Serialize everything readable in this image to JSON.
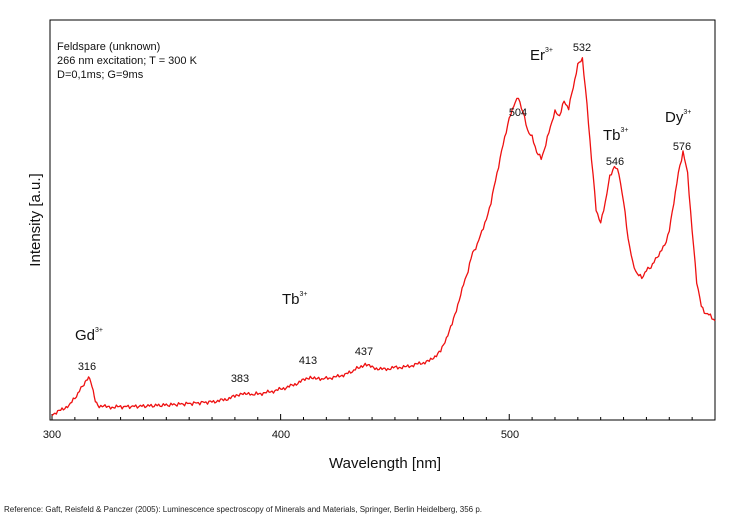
{
  "chart_data": {
    "type": "line",
    "xlabel": "Wavelength [nm]",
    "ylabel": "Intensity [a.u.]",
    "xlim": [
      300,
      590
    ],
    "ylim": [
      0,
      100
    ],
    "x_ticks": [
      "300",
      "400",
      "500"
    ],
    "info_lines": [
      "Feldspare (unknown)",
      "266 nm excitation; T = 300 K",
      "D=0,1ms; G=9ms"
    ],
    "series": [
      {
        "color": "#ee1111",
        "x": [
          300,
          305,
          308,
          310,
          312,
          314,
          315,
          316,
          317,
          318,
          319,
          320,
          322,
          325,
          330,
          340,
          350,
          360,
          370,
          375,
          380,
          383,
          386,
          390,
          395,
          400,
          405,
          410,
          413,
          416,
          420,
          425,
          430,
          434,
          437,
          440,
          445,
          450,
          455,
          460,
          465,
          470,
          475,
          480,
          482,
          484,
          486,
          488,
          490,
          492,
          494,
          496,
          498,
          500,
          502,
          504,
          506,
          508,
          510,
          512,
          514,
          516,
          518,
          520,
          522,
          524,
          526,
          528,
          530,
          532,
          534,
          536,
          538,
          540,
          542,
          544,
          546,
          548,
          550,
          552,
          554,
          556,
          558,
          560,
          562,
          564,
          566,
          568,
          570,
          572,
          574,
          576,
          578,
          580,
          582,
          584,
          586,
          588,
          590
        ],
        "y": [
          1,
          2.5,
          4,
          5.5,
          7.5,
          9.5,
          10.5,
          11,
          10,
          7.5,
          5,
          3.5,
          3.2,
          3,
          3.1,
          3.3,
          3.6,
          4,
          4.5,
          5,
          6,
          7,
          6.5,
          6.7,
          7.2,
          8,
          9,
          10.5,
          11.5,
          10.8,
          11,
          11.5,
          12.5,
          14,
          15,
          14,
          13.5,
          14,
          14.2,
          15,
          15.8,
          18.5,
          26,
          37,
          41,
          46,
          48,
          52,
          55,
          60,
          66,
          72,
          78,
          83,
          87,
          89,
          85,
          80,
          78,
          74,
          72,
          76,
          81,
          85,
          84,
          88,
          86,
          92,
          98,
          100,
          87,
          72,
          58,
          54,
          60,
          67,
          70,
          68,
          60,
          50,
          43,
          40,
          39,
          41,
          42,
          44,
          46,
          48,
          52,
          60,
          68,
          74,
          68,
          52,
          38,
          31,
          29,
          28.5,
          27
        ]
      }
    ],
    "annotations": {
      "peaks": [
        "316",
        "383",
        "413",
        "437",
        "504",
        "532",
        "546",
        "576"
      ],
      "ions": {
        "gd": {
          "base": "Gd",
          "sup": "3+"
        },
        "tb1": {
          "base": "Tb",
          "sup": "3+"
        },
        "er": {
          "base": "Er",
          "sup": "3+"
        },
        "tb2": {
          "base": "Tb",
          "sup": "3+"
        },
        "dy": {
          "base": "Dy",
          "sup": "3+"
        }
      }
    }
  },
  "reference": "Reference: Gaft, Reisfeld & Panczer (2005): Luminescence spectroscopy of Minerals and Materials, Springer, Berlin Heidelberg, 356 p."
}
